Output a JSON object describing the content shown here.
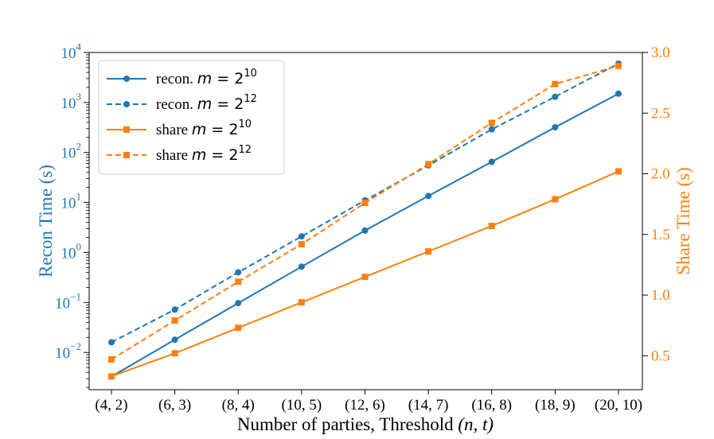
{
  "chart_data": {
    "type": "line",
    "categories": [
      "(4, 2)",
      "(6, 3)",
      "(8, 4)",
      "(10, 5)",
      "(12, 6)",
      "(14, 7)",
      "(16, 8)",
      "(18, 9)",
      "(20, 10)"
    ],
    "xlabel": "Number of parties, Threshold",
    "xlabel_math": "(n, t)",
    "ylabel_left": "Recon Time (s)",
    "ylabel_right": "Share Time (s)",
    "left_axis": {
      "scale": "log",
      "ylim": [
        0.0018,
        10000
      ],
      "tick_bases": [
        "10",
        "10",
        "10",
        "10",
        "10",
        "10",
        "10"
      ],
      "tick_exponents": [
        "−2",
        "−1",
        "0",
        "1",
        "2",
        "3",
        "4"
      ]
    },
    "right_axis": {
      "scale": "linear",
      "ylim": [
        0.22,
        3.0
      ],
      "ticks": [
        "0.5",
        "1.0",
        "1.5",
        "2.0",
        "2.5",
        "3.0"
      ]
    },
    "series": [
      {
        "name": "recon. m = 2^10",
        "legend_prefix": "recon.",
        "legend_exp": "10",
        "axis": "left",
        "style": "solid",
        "marker": "circle",
        "color": "#1f77b4",
        "values": [
          0.0033,
          0.018,
          0.097,
          0.52,
          2.75,
          13.5,
          65,
          320,
          1500
        ]
      },
      {
        "name": "recon. m = 2^12",
        "legend_prefix": "recon.",
        "legend_exp": "12",
        "axis": "left",
        "style": "dashed",
        "marker": "circle",
        "color": "#1f77b4",
        "values": [
          0.016,
          0.072,
          0.4,
          2.1,
          11,
          55,
          290,
          1300,
          6000
        ]
      },
      {
        "name": "share m = 2^10",
        "legend_prefix": "share",
        "legend_exp": "10",
        "axis": "right",
        "style": "solid",
        "marker": "square",
        "color": "#ff7f0e",
        "values": [
          0.33,
          0.52,
          0.73,
          0.94,
          1.15,
          1.36,
          1.57,
          1.79,
          2.02
        ]
      },
      {
        "name": "share m = 2^12",
        "legend_prefix": "share",
        "legend_exp": "12",
        "axis": "right",
        "style": "dashed",
        "marker": "square",
        "color": "#ff7f0e",
        "values": [
          0.47,
          0.79,
          1.11,
          1.42,
          1.76,
          2.08,
          2.42,
          2.74,
          2.89
        ]
      }
    ],
    "legend": {
      "placement": "top-left",
      "variable": "m",
      "base": "2"
    },
    "colors": {
      "left_axis": "#1f77b4",
      "right_axis": "#ff7f0e",
      "text": "#000000"
    }
  }
}
